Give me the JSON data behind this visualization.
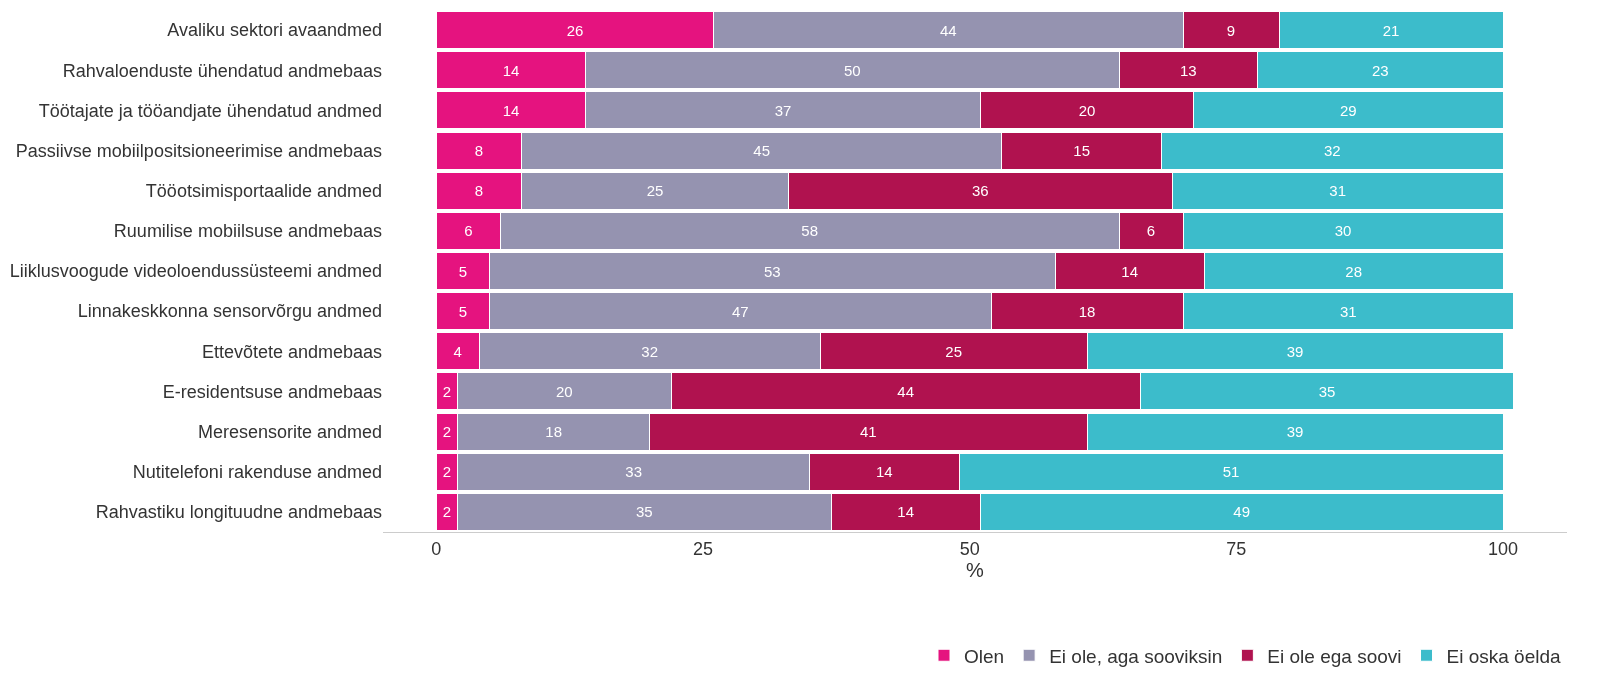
{
  "chart_data": {
    "type": "bar",
    "orientation": "horizontal",
    "stacked": true,
    "xlabel": "%",
    "categories": [
      "Avaliku sektori avaandmed",
      "Rahvaloenduste ühendatud andmebaas",
      "Töötajate ja tööandjate ühendatud andmed",
      "Passiivse mobiilpositsioneerimise andmebaas",
      "Tööotsimisportaalide andmed",
      "Ruumilise mobiilsuse andmebaas",
      "Liiklusvoogude videoloendussüsteemi andmed",
      "Linnakeskkonna sensorvõrgu andmed",
      "Ettevõtete andmebaas",
      "E-residentsuse andmebaas",
      "Meresensorite andmed",
      "Nutitelefoni rakenduse andmed",
      "Rahvastiku longituudne andmebaas"
    ],
    "series": [
      {
        "name": "Olen",
        "color": "#e5137f",
        "values": [
          26,
          14,
          14,
          8,
          8,
          6,
          5,
          5,
          4,
          2,
          2,
          2,
          2
        ]
      },
      {
        "name": "Ei ole, aga sooviksin",
        "color": "#9593b0",
        "values": [
          44,
          50,
          37,
          45,
          25,
          58,
          53,
          47,
          32,
          20,
          18,
          33,
          35
        ]
      },
      {
        "name": "Ei ole ega soovi",
        "color": "#b0124f",
        "values": [
          9,
          13,
          20,
          15,
          36,
          6,
          14,
          18,
          25,
          44,
          41,
          14,
          14
        ]
      },
      {
        "name": "Ei oska öelda",
        "color": "#3cbccb",
        "values": [
          21,
          23,
          29,
          32,
          31,
          30,
          28,
          31,
          39,
          35,
          39,
          51,
          49
        ]
      }
    ],
    "xlim": [
      -5,
      106
    ],
    "xticks": [
      0,
      25,
      50,
      75,
      100
    ],
    "grid": false,
    "legend": "bottom",
    "data_labels": true
  }
}
